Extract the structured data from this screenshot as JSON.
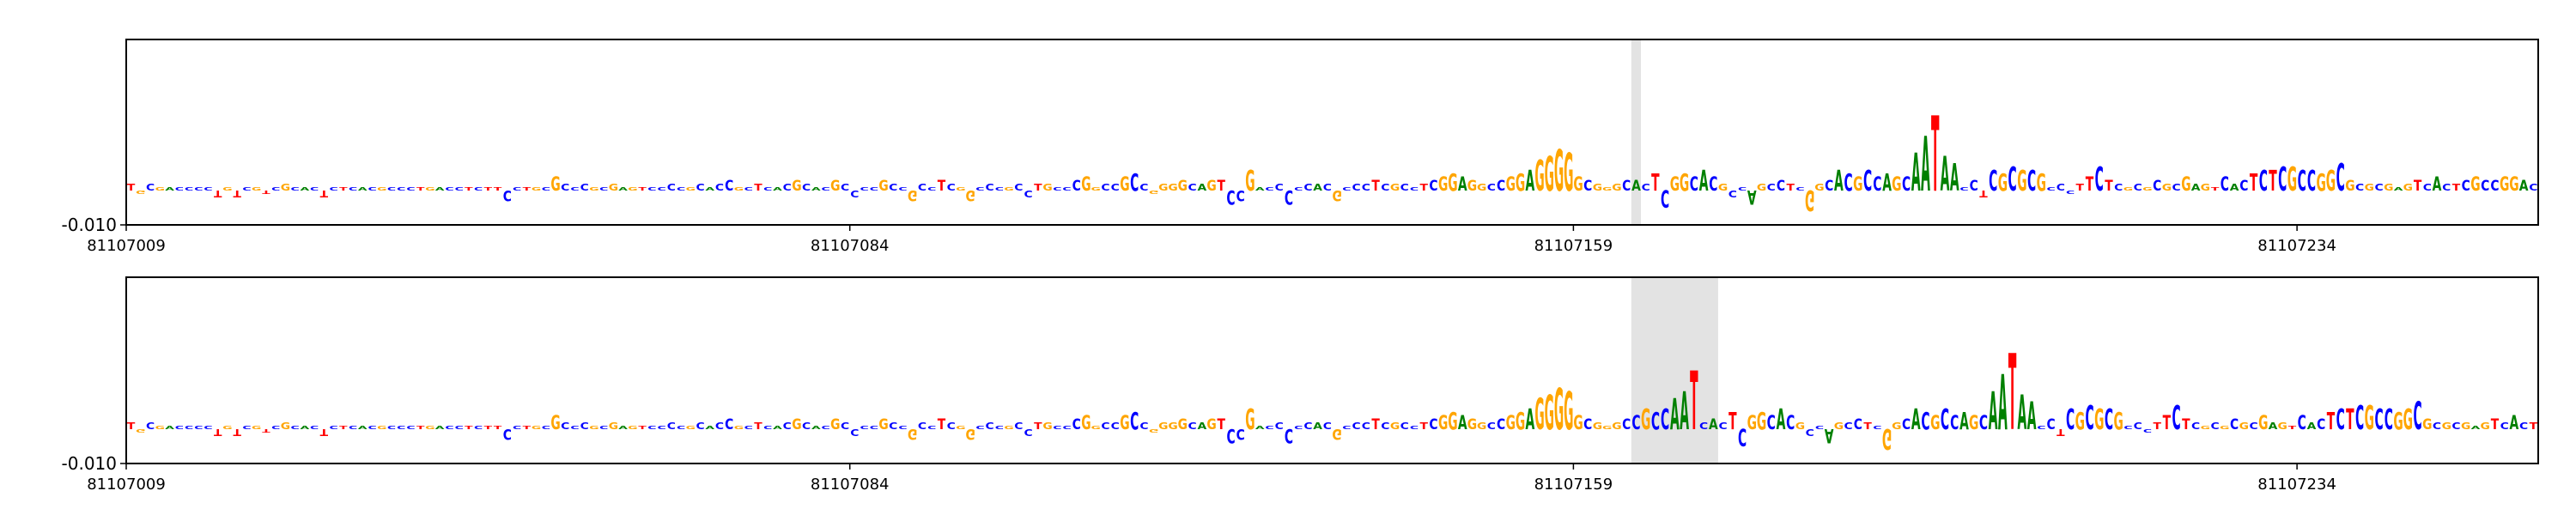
{
  "chart_data": [
    {
      "type": "logo",
      "sequence": "TGCGACCCCTGTCGTCGCACTCTCACGCCCTGACCTCTTCCTGCGCCCGCGAGTCCCCGCACCGCTCACGCACGCCCCGCCGCCTCGGCCCGCCTGCCCGGCCGCCGGGGCAGTCCGACCCCCACGCCCTCGCCTCGGAGGCCGGAGGGGGCGGGCACTCGGCACGCCAGCCTCGGCACGCCAGCAATAACCTCGCGCGCCCTTCTCGCGCGCGAGTCACTCTCGCCGGCGCGCGAGTCACTCGCCGGAC",
      "values": [
        0.002,
        -0.001,
        0.002,
        0.001,
        0.001,
        0.001,
        0.001,
        0.001,
        0.001,
        -0.002,
        0.001,
        -0.002,
        0.001,
        0.001,
        -0.001,
        0.001,
        0.002,
        0.001,
        0.001,
        0.001,
        -0.002,
        0.001,
        0.001,
        0.001,
        0.001,
        0.001,
        0.001,
        0.001,
        0.001,
        0.001,
        0.001,
        0.001,
        0.001,
        0.001,
        0.001,
        0.001,
        0.001,
        0.001,
        0.001,
        -0.003,
        0.001,
        0.001,
        0.001,
        0.001,
        0.004,
        0.002,
        0.001,
        0.002,
        0.001,
        0.001,
        0.002,
        0.001,
        0.001,
        0.001,
        0.001,
        0.001,
        0.002,
        0.001,
        0.001,
        0.002,
        0.001,
        0.002,
        0.003,
        0.001,
        0.001,
        0.002,
        0.001,
        0.001,
        0.002,
        0.003,
        0.002,
        0.001,
        0.001,
        0.003,
        0.002,
        -0.002,
        0.001,
        0.001,
        0.003,
        0.002,
        0.001,
        -0.003,
        0.002,
        0.001,
        0.003,
        0.002,
        0.001,
        -0.003,
        0.001,
        0.002,
        0.001,
        0.001,
        0.002,
        -0.002,
        0.002,
        0.002,
        0.001,
        0.001,
        0.003,
        0.004,
        0.001,
        0.002,
        0.002,
        0.004,
        0.005,
        0.002,
        -0.001,
        0.002,
        0.002,
        0.003,
        0.002,
        0.002,
        0.003,
        0.003,
        -0.004,
        -0.003,
        0.006,
        0.001,
        0.001,
        0.002,
        -0.004,
        0.001,
        0.002,
        0.002,
        0.002,
        -0.003,
        0.001,
        0.002,
        0.002,
        0.003,
        0.002,
        0.002,
        0.002,
        0.001,
        0.002,
        0.003,
        0.004,
        0.005,
        0.004,
        0.003,
        0.002,
        0.002,
        0.003,
        0.004,
        0.005,
        0.006,
        0.009,
        0.01,
        0.012,
        0.011,
        0.004,
        0.003,
        0.002,
        0.001,
        0.002,
        0.003,
        0.003,
        0.002,
        0.005,
        -0.005,
        0.004,
        0.005,
        0.004,
        0.006,
        0.004,
        0.002,
        -0.002,
        0.001,
        -0.004,
        0.002,
        0.002,
        0.003,
        0.002,
        0.001,
        -0.006,
        0.002,
        0.003,
        0.006,
        0.005,
        0.004,
        0.006,
        0.004,
        0.005,
        0.004,
        0.004,
        0.011,
        0.016,
        0.022,
        0.01,
        0.008,
        0.001,
        0.003,
        -0.002,
        0.006,
        0.005,
        0.007,
        0.006,
        0.006,
        0.005,
        0.001,
        0.002,
        -0.001,
        0.002,
        0.004,
        0.007,
        0.003,
        0.002,
        0.001,
        0.002,
        0.001,
        0.003,
        0.002,
        0.002,
        0.004,
        0.002,
        0.002,
        0.001,
        0.004,
        0.002,
        0.003,
        0.005,
        0.006,
        0.006,
        0.007,
        0.007,
        0.006,
        0.006,
        0.005,
        0.006,
        0.008,
        0.003,
        0.002,
        0.002,
        0.002,
        0.002,
        0.001,
        0.002,
        0.003,
        0.002,
        0.004,
        0.002,
        0.002,
        0.003,
        0.004,
        0.003,
        0.003,
        0.004,
        0.004,
        0.003,
        0.002
      ],
      "colors": {
        "A": "#008000",
        "C": "#0000ff",
        "G": "#ffa500",
        "T": "#ff0000"
      },
      "highlight": [
        81107165,
        81107166
      ],
      "highlight_color": "#e3e3e3",
      "xlim": [
        81107009,
        81107259
      ],
      "xticks": [
        81107009,
        81107084,
        81107159,
        81107234
      ],
      "ylim": [
        -0.01,
        0.044
      ],
      "yticks": [
        {
          "value": -0.01,
          "label": "-0.010"
        }
      ]
    },
    {
      "type": "logo",
      "sequence": "TGCGACCCCTGTCGTCGCACTCTCACGCCCTGACCTCTTCCTGCGCCCGCGAGTCCCCGCACCGCTCACGCACGCCCCGCCGCCTCGGCCCGCCTGCCCGGCCGCCGGGGCAGTCCGACCCCCACGCCCTCGCCTCGGAGGCCGGAGGGGGCGGGCCGCCAATCACTCGGCACGCCAGCCTCGGCACGCCAGCAATAACCTCGCGCGCCCTTCTCGCGCGCGAGTCACTCTCGCCGGCGCGCGAGTCACT",
      "values": [
        0.002,
        -0.001,
        0.002,
        0.001,
        0.001,
        0.001,
        0.001,
        0.001,
        0.001,
        -0.002,
        0.001,
        -0.002,
        0.001,
        0.001,
        -0.001,
        0.001,
        0.002,
        0.001,
        0.001,
        0.001,
        -0.002,
        0.001,
        0.001,
        0.001,
        0.001,
        0.001,
        0.001,
        0.001,
        0.001,
        0.001,
        0.001,
        0.001,
        0.001,
        0.001,
        0.001,
        0.001,
        0.001,
        0.001,
        0.001,
        -0.003,
        0.001,
        0.001,
        0.001,
        0.001,
        0.004,
        0.002,
        0.001,
        0.002,
        0.001,
        0.001,
        0.002,
        0.001,
        0.001,
        0.001,
        0.001,
        0.001,
        0.002,
        0.001,
        0.001,
        0.002,
        0.001,
        0.002,
        0.003,
        0.001,
        0.001,
        0.002,
        0.001,
        0.001,
        0.002,
        0.003,
        0.002,
        0.001,
        0.001,
        0.003,
        0.002,
        -0.002,
        0.001,
        0.001,
        0.003,
        0.002,
        0.001,
        -0.003,
        0.002,
        0.001,
        0.003,
        0.002,
        0.001,
        -0.003,
        0.001,
        0.002,
        0.001,
        0.001,
        0.002,
        -0.002,
        0.002,
        0.002,
        0.001,
        0.001,
        0.003,
        0.004,
        0.001,
        0.002,
        0.002,
        0.004,
        0.005,
        0.002,
        -0.001,
        0.002,
        0.002,
        0.003,
        0.002,
        0.002,
        0.003,
        0.003,
        -0.004,
        -0.003,
        0.006,
        0.001,
        0.001,
        0.002,
        -0.004,
        0.001,
        0.002,
        0.002,
        0.002,
        -0.003,
        0.001,
        0.002,
        0.002,
        0.003,
        0.002,
        0.002,
        0.002,
        0.001,
        0.002,
        0.003,
        0.004,
        0.005,
        0.004,
        0.003,
        0.002,
        0.002,
        0.003,
        0.004,
        0.005,
        0.006,
        0.009,
        0.01,
        0.012,
        0.011,
        0.004,
        0.003,
        0.002,
        0.001,
        0.002,
        0.003,
        0.004,
        0.006,
        0.005,
        0.006,
        0.009,
        0.011,
        0.017,
        0.002,
        0.003,
        0.002,
        0.005,
        -0.005,
        0.004,
        0.005,
        0.004,
        0.006,
        0.004,
        0.002,
        -0.002,
        0.001,
        -0.004,
        0.002,
        0.002,
        0.003,
        0.002,
        0.001,
        -0.006,
        0.002,
        0.003,
        0.006,
        0.005,
        0.004,
        0.006,
        0.004,
        0.005,
        0.004,
        0.004,
        0.011,
        0.016,
        0.022,
        0.01,
        0.008,
        0.001,
        0.003,
        -0.002,
        0.006,
        0.005,
        0.007,
        0.006,
        0.006,
        0.005,
        0.001,
        0.002,
        -0.001,
        0.002,
        0.004,
        0.007,
        0.003,
        0.002,
        0.001,
        0.002,
        0.001,
        0.003,
        0.002,
        0.002,
        0.004,
        0.002,
        0.002,
        0.001,
        0.004,
        0.002,
        0.003,
        0.005,
        0.006,
        0.006,
        0.007,
        0.007,
        0.006,
        0.006,
        0.005,
        0.006,
        0.008,
        0.003,
        0.002,
        0.002,
        0.002,
        0.002,
        0.001,
        0.002,
        0.003,
        0.002,
        0.004,
        0.002,
        0.002
      ],
      "colors": {
        "A": "#008000",
        "C": "#0000ff",
        "G": "#ffa500",
        "T": "#ff0000"
      },
      "highlight": [
        81107165,
        81107174
      ],
      "highlight_color": "#e3e3e3",
      "xlim": [
        81107009,
        81107259
      ],
      "xticks": [
        81107009,
        81107084,
        81107159,
        81107234
      ],
      "ylim": [
        -0.01,
        0.044
      ],
      "yticks": [
        {
          "value": -0.01,
          "label": "-0.010"
        }
      ]
    }
  ]
}
